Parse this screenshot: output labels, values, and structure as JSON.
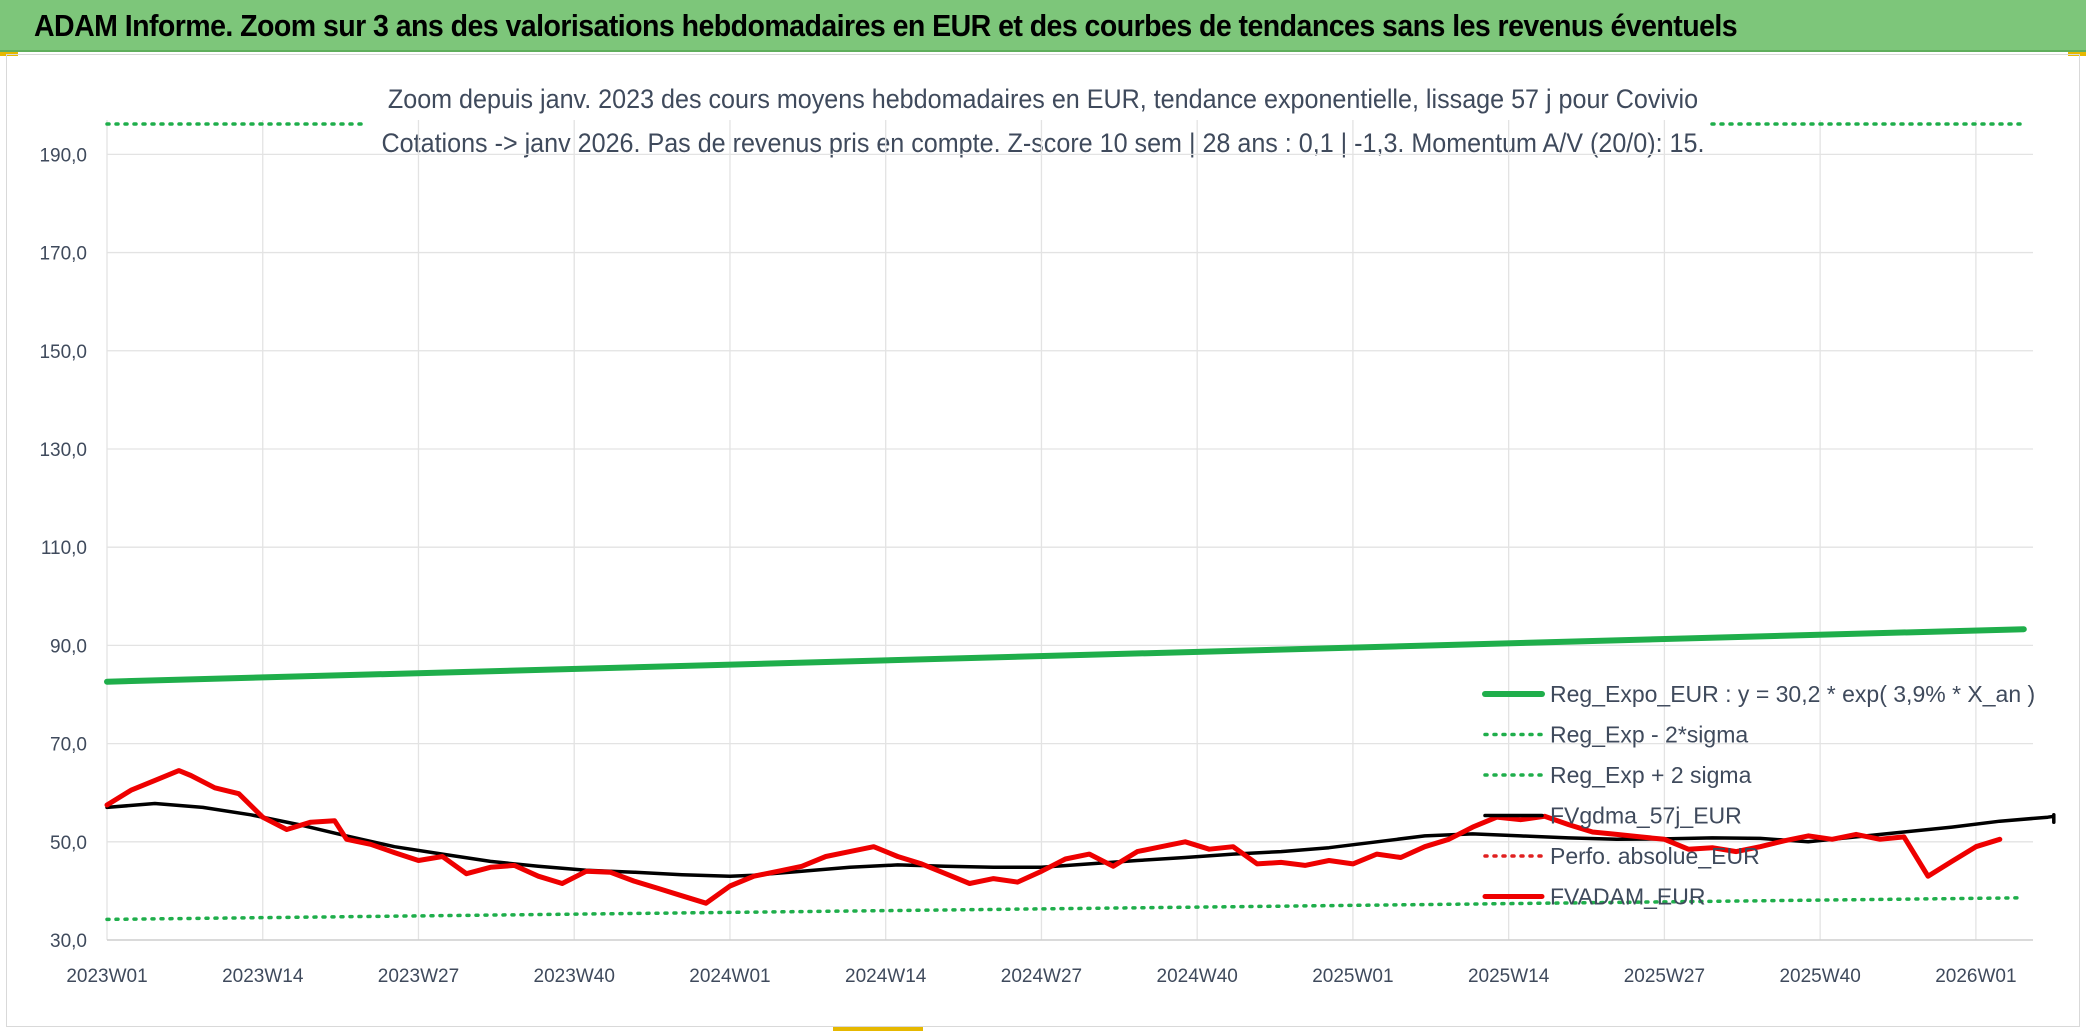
{
  "header": {
    "title": "ADAM Informe. Zoom sur 3 ans des valorisations hebdomadaires en EUR et des courbes de tendances sans les revenus éventuels"
  },
  "colors": {
    "header_bg": "#7dc67a",
    "reg_expo": "#1fae4b",
    "sigma": "#1fae4b",
    "fvgdma": "#000000",
    "perfo": "#e02020",
    "fvadam": "#ee0000",
    "grid": "#e3e3e3"
  },
  "chart_data": {
    "type": "line",
    "title_line1": "Zoom depuis janv. 2023 des cours moyens hebdomadaires en EUR, tendance exponentielle, lissage 57 j pour Covivio",
    "title_line2": "Cotations -> janv 2026. Pas de revenus pris en compte. Z-score 10 sem | 28 ans : 0,1 | -1,3. Momentum A/V (20/0): 15.",
    "ylim": [
      30,
      200
    ],
    "y_ticks": [
      "30,0",
      "50,0",
      "70,0",
      "90,0",
      "110,0",
      "130,0",
      "150,0",
      "170,0",
      "190,0"
    ],
    "y_tick_values": [
      30,
      50,
      70,
      90,
      110,
      130,
      150,
      170,
      190
    ],
    "x_ticks": [
      "2023W01",
      "2023W14",
      "2023W27",
      "2023W40",
      "2024W01",
      "2024W14",
      "2024W27",
      "2024W40",
      "2025W01",
      "2025W14",
      "2025W27",
      "2025W40",
      "2026W01"
    ],
    "x_tick_weeks": [
      0,
      13,
      26,
      39,
      52,
      65,
      78,
      91,
      104,
      117,
      130,
      143,
      156
    ],
    "week_count": 161,
    "grid": true,
    "legend_position": "right",
    "series": [
      {
        "name": "Reg_Expo_EUR : y = 30,2 * exp( 3,9% *  X_an )",
        "style": "solid-thick",
        "points": [
          [
            0,
            82.6
          ],
          [
            160,
            93.3
          ]
        ]
      },
      {
        "name": "Reg_Exp - 2*sigma",
        "style": "dotted",
        "points": [
          [
            0,
            34.2
          ],
          [
            160,
            38.6
          ]
        ]
      },
      {
        "name": "Reg_Exp + 2 sigma",
        "style": "dotted",
        "points": [
          [
            0,
            200
          ],
          [
            160,
            200
          ]
        ]
      },
      {
        "name": "FVgdma_57j_EUR",
        "style": "solid",
        "points": [
          [
            0,
            57.0
          ],
          [
            4,
            57.8
          ],
          [
            8,
            57.0
          ],
          [
            12,
            55.5
          ],
          [
            16,
            53.5
          ],
          [
            20,
            51.2
          ],
          [
            24,
            49.0
          ],
          [
            28,
            47.5
          ],
          [
            32,
            46.0
          ],
          [
            36,
            45.0
          ],
          [
            40,
            44.2
          ],
          [
            44,
            43.8
          ],
          [
            48,
            43.3
          ],
          [
            52,
            43.0
          ],
          [
            54,
            43.2
          ],
          [
            58,
            44.0
          ],
          [
            62,
            44.8
          ],
          [
            66,
            45.3
          ],
          [
            70,
            45.0
          ],
          [
            74,
            44.8
          ],
          [
            78,
            44.8
          ],
          [
            82,
            45.5
          ],
          [
            86,
            46.2
          ],
          [
            90,
            46.8
          ],
          [
            94,
            47.5
          ],
          [
            98,
            48.0
          ],
          [
            102,
            48.8
          ],
          [
            106,
            50.0
          ],
          [
            110,
            51.2
          ],
          [
            114,
            51.6
          ],
          [
            118,
            51.2
          ],
          [
            122,
            50.8
          ],
          [
            126,
            50.5
          ],
          [
            130,
            50.6
          ],
          [
            134,
            50.8
          ],
          [
            138,
            50.7
          ],
          [
            142,
            50.0
          ],
          [
            146,
            51.0
          ],
          [
            150,
            52.0
          ],
          [
            154,
            53.0
          ],
          [
            158,
            54.2
          ],
          [
            162,
            55.0
          ],
          [
            166,
            55.2
          ],
          [
            170,
            55.5
          ],
          [
            174,
            55.4
          ],
          [
            178,
            55.0
          ],
          [
            182,
            54.8
          ],
          [
            186,
            54.7
          ],
          [
            190,
            54.5
          ],
          [
            194,
            54.3
          ],
          [
            198,
            54.1
          ],
          [
            202,
            54.0
          ]
        ]
      },
      {
        "name": "Perfo. absolue_EUR",
        "style": "dotted",
        "points": []
      },
      {
        "name": "FVADAM_EUR",
        "style": "solid-thick",
        "points": [
          [
            0,
            57.5
          ],
          [
            2,
            60.5
          ],
          [
            4,
            62.5
          ],
          [
            6,
            64.5
          ],
          [
            7,
            63.5
          ],
          [
            9,
            61.0
          ],
          [
            11,
            59.8
          ],
          [
            13,
            55.0
          ],
          [
            15,
            52.5
          ],
          [
            17,
            54.0
          ],
          [
            19,
            54.3
          ],
          [
            20,
            50.5
          ],
          [
            22,
            49.5
          ],
          [
            24,
            47.8
          ],
          [
            26,
            46.2
          ],
          [
            28,
            47.0
          ],
          [
            30,
            43.5
          ],
          [
            32,
            44.8
          ],
          [
            34,
            45.2
          ],
          [
            36,
            43.0
          ],
          [
            38,
            41.5
          ],
          [
            40,
            44.0
          ],
          [
            42,
            43.8
          ],
          [
            44,
            42.0
          ],
          [
            46,
            40.5
          ],
          [
            48,
            39.0
          ],
          [
            50,
            37.5
          ],
          [
            52,
            41.0
          ],
          [
            54,
            43.0
          ],
          [
            56,
            44.0
          ],
          [
            58,
            45.0
          ],
          [
            60,
            47.0
          ],
          [
            62,
            48.0
          ],
          [
            64,
            49.0
          ],
          [
            66,
            47.0
          ],
          [
            68,
            45.5
          ],
          [
            70,
            43.5
          ],
          [
            72,
            41.5
          ],
          [
            74,
            42.5
          ],
          [
            76,
            41.8
          ],
          [
            78,
            44.0
          ],
          [
            80,
            46.5
          ],
          [
            82,
            47.5
          ],
          [
            84,
            45.0
          ],
          [
            86,
            48.0
          ],
          [
            88,
            49.0
          ],
          [
            90,
            50.0
          ],
          [
            92,
            48.5
          ],
          [
            94,
            49.0
          ],
          [
            96,
            45.5
          ],
          [
            98,
            45.8
          ],
          [
            100,
            45.2
          ],
          [
            102,
            46.2
          ],
          [
            104,
            45.5
          ],
          [
            106,
            47.5
          ],
          [
            108,
            46.8
          ],
          [
            110,
            49.0
          ],
          [
            112,
            50.5
          ],
          [
            114,
            53.0
          ],
          [
            116,
            55.0
          ],
          [
            118,
            54.5
          ],
          [
            120,
            55.2
          ],
          [
            122,
            53.5
          ],
          [
            124,
            52.0
          ],
          [
            126,
            51.5
          ],
          [
            128,
            51.0
          ],
          [
            130,
            50.5
          ],
          [
            132,
            48.5
          ],
          [
            134,
            48.8
          ],
          [
            136,
            48.0
          ],
          [
            138,
            49.0
          ],
          [
            140,
            50.2
          ],
          [
            142,
            51.2
          ],
          [
            144,
            50.5
          ],
          [
            146,
            51.5
          ],
          [
            148,
            50.5
          ],
          [
            150,
            51.0
          ],
          [
            152,
            43.0
          ],
          [
            154,
            46.0
          ],
          [
            156,
            49.0
          ],
          [
            158,
            50.5
          ]
        ]
      }
    ]
  }
}
